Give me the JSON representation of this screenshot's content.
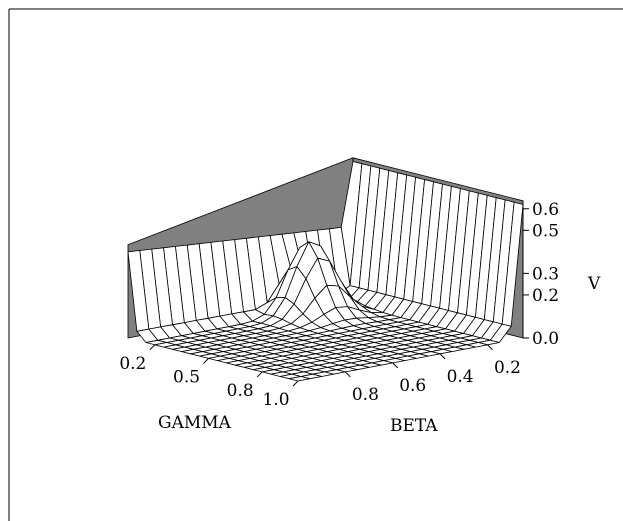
{
  "chart_data": {
    "type": "surface3d",
    "title": "",
    "xlabel": "GAMMA",
    "ylabel": "BETA",
    "zlabel": "V",
    "x_ticks": [
      "0.2",
      "0.5",
      "0.8",
      "1.0"
    ],
    "y_ticks": [
      "0.2",
      "0.4",
      "0.6",
      "0.8"
    ],
    "z_ticks": [
      "0.0",
      "0.2",
      "0.3",
      "0.5",
      "0.6"
    ],
    "x_range": [
      0.05,
      1.0
    ],
    "y_range": [
      0.05,
      1.0
    ],
    "z_range": [
      0.0,
      0.65
    ],
    "grid_size": [
      20,
      20
    ],
    "surface_levels": {
      "beta_low_wall_height": 0.62,
      "gamma_low_wall_height": 0.32,
      "ridge_peak": 0.35,
      "floor": 0.0
    },
    "surface_color": "#ffffff",
    "wall_color": "#808080",
    "line_color": "#000000"
  }
}
